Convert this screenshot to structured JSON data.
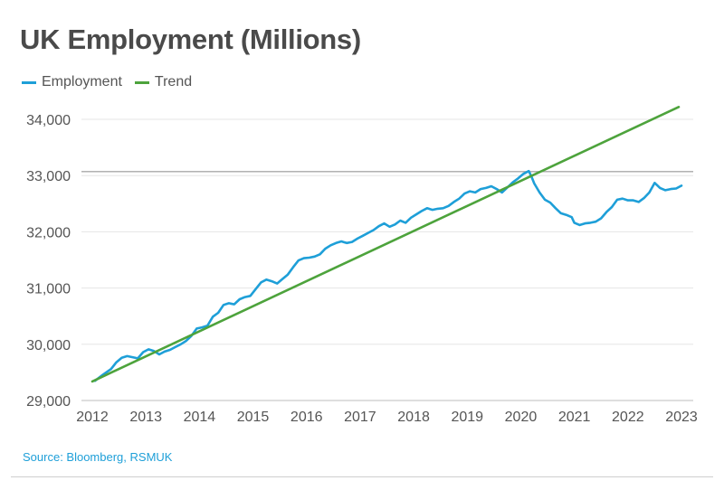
{
  "chart_data": {
    "type": "line",
    "title": "UK Employment (Millions)",
    "xlabel": "",
    "ylabel": "",
    "xlim": [
      2012,
      2023
    ],
    "ylim": [
      29000,
      34500
    ],
    "x_ticks": [
      2012,
      2013,
      2014,
      2015,
      2016,
      2017,
      2018,
      2019,
      2020,
      2021,
      2022,
      2023
    ],
    "x_tick_labels": [
      "2012",
      "2013",
      "2014",
      "2015",
      "2016",
      "2017",
      "2018",
      "2019",
      "2020",
      "2021",
      "2022",
      "2023"
    ],
    "y_ticks": [
      29000,
      30000,
      31000,
      32000,
      33000,
      34000
    ],
    "y_tick_labels": [
      "29,000",
      "30,000",
      "31,000",
      "32,000",
      "33,000",
      "34,000"
    ],
    "grid": true,
    "legend_position": "top-left",
    "reference_line": 33070,
    "series": [
      {
        "name": "Employment",
        "color": "#1e9fd8",
        "x": [
          2012.05,
          2012.2,
          2012.35,
          2012.45,
          2012.55,
          2012.65,
          2012.75,
          2012.85,
          2012.95,
          2013.05,
          2013.15,
          2013.25,
          2013.35,
          2013.45,
          2013.55,
          2013.65,
          2013.75,
          2013.85,
          2013.95,
          2014.05,
          2014.15,
          2014.25,
          2014.35,
          2014.45,
          2014.55,
          2014.65,
          2014.75,
          2014.85,
          2014.95,
          2015.05,
          2015.15,
          2015.25,
          2015.35,
          2015.45,
          2015.55,
          2015.65,
          2015.75,
          2015.85,
          2015.95,
          2016.05,
          2016.15,
          2016.25,
          2016.35,
          2016.45,
          2016.55,
          2016.65,
          2016.75,
          2016.85,
          2016.95,
          2017.05,
          2017.15,
          2017.25,
          2017.35,
          2017.45,
          2017.55,
          2017.65,
          2017.75,
          2017.85,
          2017.95,
          2018.05,
          2018.15,
          2018.25,
          2018.35,
          2018.45,
          2018.55,
          2018.65,
          2018.75,
          2018.85,
          2018.95,
          2019.05,
          2019.15,
          2019.25,
          2019.35,
          2019.45,
          2019.55,
          2019.65,
          2019.75,
          2019.85,
          2019.95,
          2020.05,
          2020.15,
          2020.2,
          2020.25,
          2020.35,
          2020.45,
          2020.55,
          2020.65,
          2020.75,
          2020.85,
          2020.95,
          2021.0,
          2021.1,
          2021.2,
          2021.3,
          2021.4,
          2021.5,
          2021.6,
          2021.7,
          2021.8,
          2021.9,
          2022.0,
          2022.1,
          2022.2,
          2022.3,
          2022.4,
          2022.5,
          2022.6,
          2022.7,
          2022.8,
          2022.9,
          2023.0
        ],
        "values": [
          29350,
          29460,
          29560,
          29680,
          29760,
          29790,
          29770,
          29750,
          29860,
          29910,
          29880,
          29820,
          29870,
          29900,
          29950,
          30000,
          30060,
          30150,
          30280,
          30300,
          30330,
          30490,
          30560,
          30700,
          30730,
          30710,
          30800,
          30840,
          30860,
          30980,
          31100,
          31150,
          31120,
          31080,
          31160,
          31240,
          31370,
          31490,
          31530,
          31540,
          31560,
          31600,
          31700,
          31760,
          31800,
          31830,
          31800,
          31820,
          31880,
          31930,
          31980,
          32030,
          32100,
          32150,
          32090,
          32130,
          32200,
          32160,
          32250,
          32310,
          32370,
          32420,
          32390,
          32410,
          32420,
          32460,
          32530,
          32590,
          32680,
          32720,
          32700,
          32760,
          32780,
          32810,
          32760,
          32700,
          32790,
          32880,
          32950,
          33030,
          33080,
          32980,
          32860,
          32700,
          32570,
          32520,
          32420,
          32330,
          32300,
          32260,
          32160,
          32120,
          32150,
          32160,
          32180,
          32240,
          32350,
          32440,
          32570,
          32590,
          32560,
          32560,
          32530,
          32600,
          32700,
          32870,
          32780,
          32740,
          32760,
          32770,
          32820
        ]
      },
      {
        "name": "Trend",
        "color": "#4da33c",
        "x": [
          2012.0,
          2022.95
        ],
        "values": [
          29340,
          34220
        ]
      }
    ]
  },
  "source": "Source: Bloomberg, RSMUK"
}
